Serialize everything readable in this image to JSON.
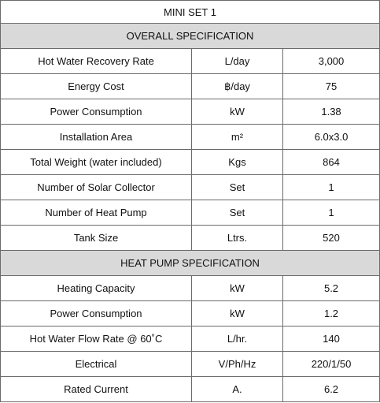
{
  "title": "MINI SET 1",
  "sections": [
    {
      "heading": "OVERALL SPECIFICATION",
      "rows": [
        [
          "Hot Water Recovery Rate",
          "L/day",
          "3,000"
        ],
        [
          "Energy Cost",
          "฿/day",
          "75"
        ],
        [
          "Power Consumption",
          "kW",
          "1.38"
        ],
        [
          "Installation Area",
          "m²",
          "6.0x3.0"
        ],
        [
          "Total Weight (water included)",
          "Kgs",
          "864"
        ],
        [
          "Number of Solar Collector",
          "Set",
          "1"
        ],
        [
          "Number of Heat Pump",
          "Set",
          "1"
        ],
        [
          "Tank Size",
          "Ltrs.",
          "520"
        ]
      ]
    },
    {
      "heading": "HEAT PUMP SPECIFICATION",
      "rows": [
        [
          "Heating Capacity",
          "kW",
          "5.2"
        ],
        [
          "Power Consumption",
          "kW",
          "1.2"
        ],
        [
          "Hot Water Flow Rate @ 60˚C",
          "L/hr.",
          "140"
        ],
        [
          "Electrical",
          "V/Ph/Hz",
          "220/1/50"
        ],
        [
          "Rated Current",
          "A.",
          "6.2"
        ]
      ]
    }
  ]
}
